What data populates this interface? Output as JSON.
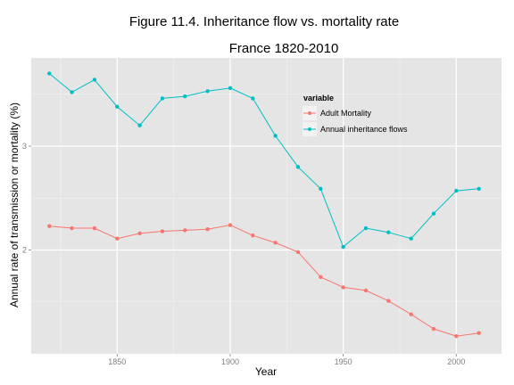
{
  "chart_data": {
    "type": "line",
    "title": "Figure 11.4. Inheritance flow vs. mortality rate",
    "subtitle": "France 1820-2010",
    "xlabel": "Year",
    "ylabel": "Annual rate of transmission or mortality (%)",
    "x": [
      1820,
      1830,
      1840,
      1850,
      1860,
      1870,
      1880,
      1890,
      1900,
      1910,
      1920,
      1930,
      1940,
      1950,
      1960,
      1970,
      1980,
      1990,
      2000,
      2010
    ],
    "xlim": [
      1812,
      2020
    ],
    "ylim": [
      1.0,
      3.85
    ],
    "x_ticks": [
      1850,
      1900,
      1950,
      2000
    ],
    "y_ticks": [
      2,
      3
    ],
    "legend_title": "variable",
    "legend_position": "right-inside",
    "grid": true,
    "series": [
      {
        "name": "Adult Mortality",
        "color": "#f8766d",
        "values": [
          2.23,
          2.21,
          2.21,
          2.11,
          2.16,
          2.18,
          2.19,
          2.2,
          2.24,
          2.14,
          2.07,
          1.98,
          1.74,
          1.64,
          1.61,
          1.51,
          1.38,
          1.24,
          1.17,
          1.2
        ]
      },
      {
        "name": "Annual inheritance flows",
        "color": "#00bfc4",
        "values": [
          3.7,
          3.52,
          3.64,
          3.38,
          3.2,
          3.46,
          3.48,
          3.53,
          3.56,
          3.46,
          3.1,
          2.8,
          2.59,
          2.03,
          2.21,
          2.17,
          2.11,
          2.35,
          2.57,
          2.59
        ]
      }
    ]
  }
}
